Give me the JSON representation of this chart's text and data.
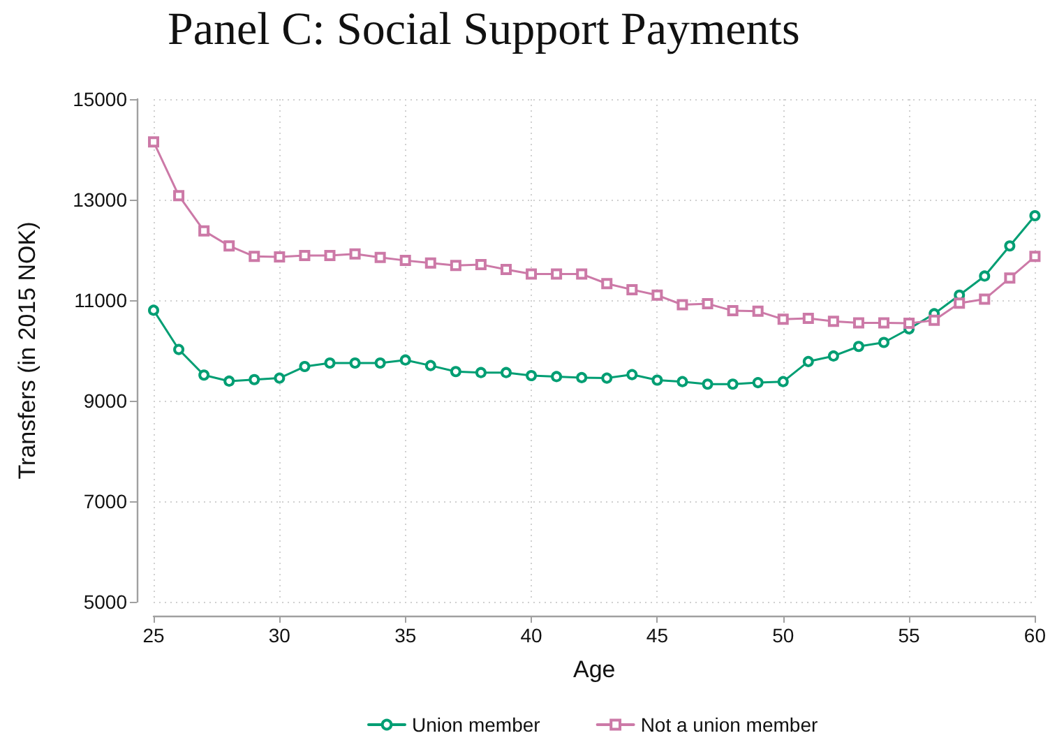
{
  "chart_data": {
    "type": "line",
    "title": "Panel C: Social Support Payments",
    "xlabel": "Age",
    "ylabel": "Transfers (in 2015 NOK)",
    "x": [
      25,
      26,
      27,
      28,
      29,
      30,
      31,
      32,
      33,
      34,
      35,
      36,
      37,
      38,
      39,
      40,
      41,
      42,
      43,
      44,
      45,
      46,
      47,
      48,
      49,
      50,
      51,
      52,
      53,
      54,
      55,
      56,
      57,
      58,
      59,
      60
    ],
    "series": [
      {
        "name": "Union member",
        "color": "#009e73",
        "marker": "circle",
        "values": [
          10800,
          10020,
          9510,
          9390,
          9420,
          9450,
          9680,
          9750,
          9750,
          9750,
          9810,
          9700,
          9580,
          9560,
          9560,
          9500,
          9480,
          9460,
          9450,
          9520,
          9410,
          9380,
          9330,
          9330,
          9360,
          9380,
          9780,
          9890,
          10080,
          10160,
          10430,
          10730,
          11100,
          11480,
          12080,
          12680
        ]
      },
      {
        "name": "Not a union member",
        "color": "#cc79a7",
        "marker": "square",
        "values": [
          14150,
          13080,
          12380,
          12080,
          11870,
          11860,
          11890,
          11890,
          11920,
          11850,
          11790,
          11740,
          11690,
          11710,
          11610,
          11520,
          11520,
          11520,
          11330,
          11210,
          11100,
          10910,
          10930,
          10790,
          10780,
          10620,
          10640,
          10580,
          10550,
          10550,
          10540,
          10600,
          10940,
          11020,
          11440,
          11870
        ]
      }
    ],
    "xlim": [
      25,
      60
    ],
    "xticks": [
      25,
      30,
      35,
      40,
      45,
      50,
      55,
      60
    ],
    "ylim": [
      5000,
      15000
    ],
    "yticks": [
      5000,
      7000,
      9000,
      11000,
      13000,
      15000
    ],
    "grid": true,
    "legend": "bottom",
    "line_style": "solid"
  }
}
